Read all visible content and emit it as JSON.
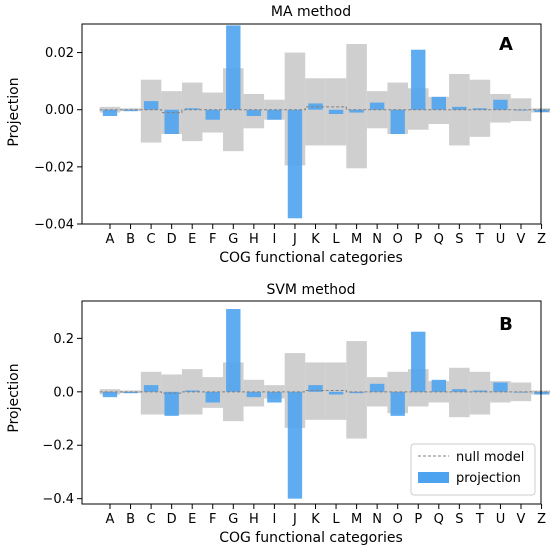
{
  "chart_data": [
    {
      "type": "bar",
      "panel_label": "A",
      "title": "MA method",
      "xlabel": "COG functional categories",
      "ylabel": "Projection",
      "ylim": [
        -0.04,
        0.03
      ],
      "yticks": [
        0.02,
        0.0,
        -0.02,
        -0.04
      ],
      "ytick_labels": [
        "0.02",
        "0.00",
        "−0.02",
        "−0.04"
      ],
      "categories": [
        "A",
        "B",
        "C",
        "D",
        "E",
        "F",
        "G",
        "H",
        "I",
        "J",
        "K",
        "L",
        "M",
        "N",
        "O",
        "P",
        "Q",
        "S",
        "T",
        "U",
        "V",
        "Z"
      ],
      "series": [
        {
          "name": "null model",
          "style": "dashed-line-with-band",
          "values": [
            0.0,
            0.0,
            0.0,
            -0.001,
            0.0,
            0.0,
            0.0,
            0.0,
            0.0,
            0.0,
            0.001,
            0.001,
            0.0,
            0.0,
            0.0,
            0.0,
            0.0,
            0.0,
            0.0,
            0.0,
            0.0,
            0.0
          ],
          "band_upper": [
            0.001,
            0.0005,
            0.0105,
            0.0065,
            0.0095,
            0.006,
            0.0145,
            0.0055,
            0.0035,
            0.02,
            0.011,
            0.011,
            0.023,
            0.0065,
            0.0095,
            0.0075,
            0.0045,
            0.0125,
            0.0105,
            0.0055,
            0.004,
            0.0005
          ],
          "band_lower": [
            -0.001,
            -0.0005,
            -0.0115,
            -0.0085,
            -0.011,
            -0.008,
            -0.0145,
            -0.0065,
            -0.0035,
            -0.0195,
            -0.0125,
            -0.0125,
            -0.0205,
            -0.0065,
            -0.0085,
            -0.007,
            -0.005,
            -0.0125,
            -0.0095,
            -0.0045,
            -0.004,
            -0.001
          ]
        },
        {
          "name": "projection",
          "style": "bar",
          "values": [
            -0.0022,
            -0.0005,
            0.003,
            -0.0085,
            0.0005,
            -0.0035,
            0.0295,
            -0.0022,
            -0.0035,
            -0.038,
            0.0022,
            -0.0015,
            -0.001,
            0.0025,
            -0.0085,
            0.021,
            0.0045,
            0.001,
            0.0005,
            0.0035,
            0.0,
            -0.0008
          ]
        }
      ],
      "grid": false,
      "legend": "none"
    },
    {
      "type": "bar",
      "panel_label": "B",
      "title": "SVM method",
      "xlabel": "COG functional categories",
      "ylabel": "Projection",
      "ylim": [
        -0.42,
        0.34
      ],
      "yticks": [
        0.2,
        0.0,
        -0.2,
        -0.4
      ],
      "ytick_labels": [
        "0.2",
        "0.0",
        "−0.2",
        "−0.4"
      ],
      "categories": [
        "A",
        "B",
        "C",
        "D",
        "E",
        "F",
        "G",
        "H",
        "I",
        "J",
        "K",
        "L",
        "M",
        "N",
        "O",
        "P",
        "Q",
        "S",
        "T",
        "U",
        "V",
        "Z"
      ],
      "series": [
        {
          "name": "null model",
          "style": "dashed-line-with-band",
          "values": [
            0.0,
            0.0,
            0.0,
            -0.005,
            0.0,
            0.0,
            0.0,
            0.0,
            0.0,
            0.0,
            0.005,
            0.005,
            0.0,
            0.0,
            0.0,
            0.0,
            0.0,
            0.0,
            0.0,
            0.0,
            0.0,
            0.0
          ],
          "band_upper": [
            0.01,
            0.005,
            0.075,
            0.065,
            0.085,
            0.055,
            0.11,
            0.045,
            0.025,
            0.145,
            0.11,
            0.11,
            0.19,
            0.055,
            0.075,
            0.085,
            0.04,
            0.09,
            0.075,
            0.04,
            0.035,
            0.005
          ],
          "band_lower": [
            -0.01,
            -0.005,
            -0.085,
            -0.085,
            -0.085,
            -0.06,
            -0.11,
            -0.055,
            -0.025,
            -0.135,
            -0.105,
            -0.105,
            -0.175,
            -0.055,
            -0.08,
            -0.055,
            -0.04,
            -0.095,
            -0.085,
            -0.04,
            -0.035,
            -0.01
          ]
        },
        {
          "name": "projection",
          "style": "bar",
          "values": [
            -0.02,
            -0.005,
            0.025,
            -0.09,
            0.005,
            -0.04,
            0.31,
            -0.02,
            -0.04,
            -0.4,
            0.025,
            -0.01,
            -0.005,
            0.03,
            -0.09,
            0.225,
            0.045,
            0.01,
            0.005,
            0.035,
            0.0,
            -0.01
          ]
        }
      ],
      "grid": false,
      "legend": "bottom-right",
      "legend_entries": [
        "null model",
        "projection"
      ]
    }
  ],
  "colors": {
    "projection": "#4ea3f0",
    "null_band": "#cfcfcf",
    "null_line": "#808080"
  }
}
